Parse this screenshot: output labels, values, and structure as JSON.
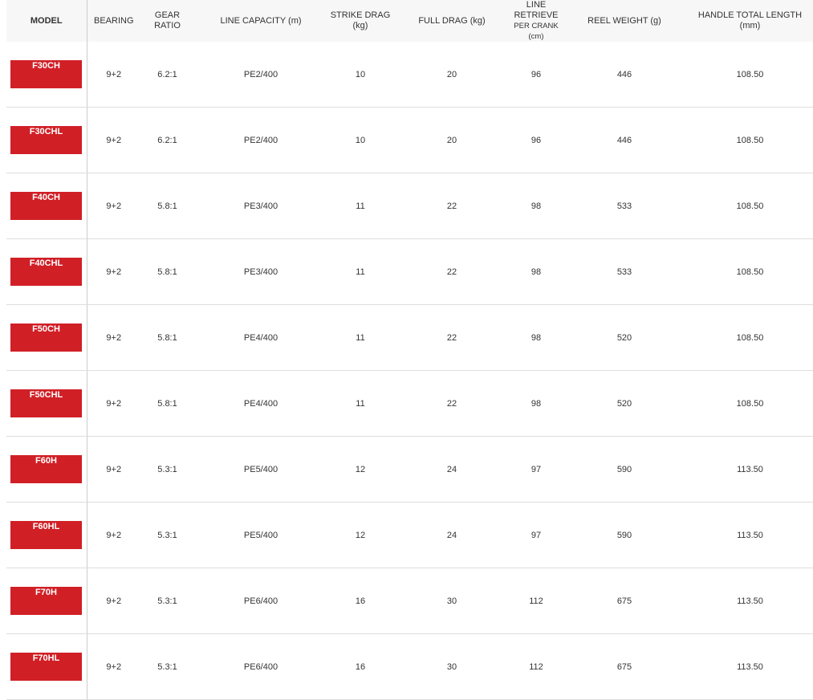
{
  "headers": {
    "model": "MODEL",
    "bearing": "BEARING",
    "gear_ratio": "GEAR RATIO",
    "line_capacity": "LINE CAPACITY (m)",
    "strike_drag": "STRIKE DRAG (kg)",
    "full_drag": "FULL DRAG (kg)",
    "line_retrieve": "LINE RETRIEVE",
    "line_retrieve_sub": "PER CRANK (cm)",
    "reel_weight": "REEL WEIGHT (g)",
    "handle_length": "HANDLE TOTAL LENGTH (mm)"
  },
  "accent_color": "#d11f26",
  "rows": [
    {
      "model": "F30CH",
      "bearing": "9+2",
      "gear": "6.2:1",
      "capacity": "PE2/400",
      "strike": "10",
      "full": "20",
      "retrieve": "96",
      "weight": "446",
      "handle": "108.50"
    },
    {
      "model": "F30CHL",
      "bearing": "9+2",
      "gear": "6.2:1",
      "capacity": "PE2/400",
      "strike": "10",
      "full": "20",
      "retrieve": "96",
      "weight": "446",
      "handle": "108.50"
    },
    {
      "model": "F40CH",
      "bearing": "9+2",
      "gear": "5.8:1",
      "capacity": "PE3/400",
      "strike": "11",
      "full": "22",
      "retrieve": "98",
      "weight": "533",
      "handle": "108.50"
    },
    {
      "model": "F40CHL",
      "bearing": "9+2",
      "gear": "5.8:1",
      "capacity": "PE3/400",
      "strike": "11",
      "full": "22",
      "retrieve": "98",
      "weight": "533",
      "handle": "108.50"
    },
    {
      "model": "F50CH",
      "bearing": "9+2",
      "gear": "5.8:1",
      "capacity": "PE4/400",
      "strike": "11",
      "full": "22",
      "retrieve": "98",
      "weight": "520",
      "handle": "108.50"
    },
    {
      "model": "F50CHL",
      "bearing": "9+2",
      "gear": "5.8:1",
      "capacity": "PE4/400",
      "strike": "11",
      "full": "22",
      "retrieve": "98",
      "weight": "520",
      "handle": "108.50"
    },
    {
      "model": "F60H",
      "bearing": "9+2",
      "gear": "5.3:1",
      "capacity": "PE5/400",
      "strike": "12",
      "full": "24",
      "retrieve": "97",
      "weight": "590",
      "handle": "113.50"
    },
    {
      "model": "F60HL",
      "bearing": "9+2",
      "gear": "5.3:1",
      "capacity": "PE5/400",
      "strike": "12",
      "full": "24",
      "retrieve": "97",
      "weight": "590",
      "handle": "113.50"
    },
    {
      "model": "F70H",
      "bearing": "9+2",
      "gear": "5.3:1",
      "capacity": "PE6/400",
      "strike": "16",
      "full": "30",
      "retrieve": "112",
      "weight": "675",
      "handle": "113.50"
    },
    {
      "model": "F70HL",
      "bearing": "9+2",
      "gear": "5.3:1",
      "capacity": "PE6/400",
      "strike": "16",
      "full": "30",
      "retrieve": "112",
      "weight": "675",
      "handle": "113.50"
    }
  ]
}
